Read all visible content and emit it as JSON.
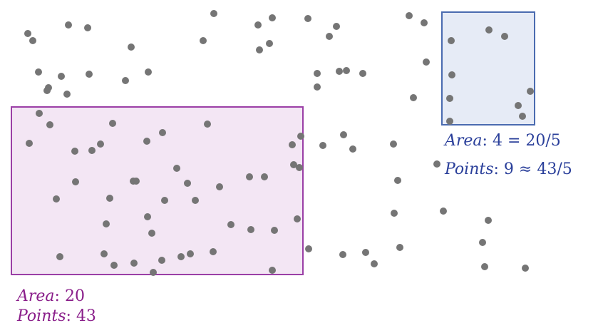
{
  "colors": {
    "dot": "#757575",
    "large_region_stroke": "#9b3fa6",
    "large_region_fill": "#f3e6f4",
    "small_region_stroke": "#4a6bb0",
    "small_region_fill": "#e6ebf6",
    "large_label": "#8a1e8a",
    "small_label": "#2a3f9a"
  },
  "large_region": {
    "area_var": "Area",
    "area_value": ": 20",
    "points_var": "Points",
    "points_value": ": 43"
  },
  "small_region": {
    "area_var": "Area",
    "area_value": ": 4 = 20/5",
    "points_var": "Points",
    "points_value": ": 9 ≈ 43/5"
  }
}
